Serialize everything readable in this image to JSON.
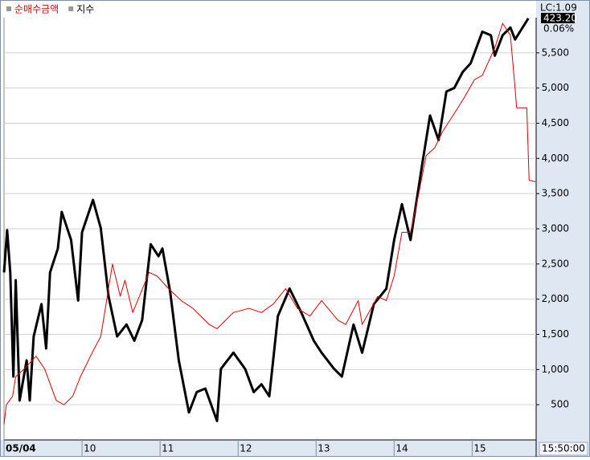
{
  "chart_data": {
    "type": "line",
    "legend": "top-left",
    "grid": true,
    "annotations": [
      "LC:1.09",
      "423.20",
      "0.06%"
    ],
    "time_label": "15:50:00",
    "xlim": [
      0,
      6.82
    ],
    "xticks": [
      {
        "value": 0,
        "label": "05/04"
      },
      {
        "value": 1,
        "label": "10"
      },
      {
        "value": 2,
        "label": "11"
      },
      {
        "value": 3,
        "label": "12"
      },
      {
        "value": 4,
        "label": "13"
      },
      {
        "value": 5,
        "label": "14"
      },
      {
        "value": 6,
        "label": "15"
      }
    ],
    "ylim": [
      0,
      6000
    ],
    "yticks": [
      500,
      {
        "value": 1000,
        "label": "1,000"
      },
      {
        "value": 1500,
        "label": "1,500"
      },
      {
        "value": 2000,
        "label": "2,000"
      },
      {
        "value": 2500,
        "label": "2,500"
      },
      {
        "value": 3000,
        "label": "3,000"
      },
      {
        "value": 3500,
        "label": "3,500"
      },
      {
        "value": 4000,
        "label": "4,000"
      },
      {
        "value": 4500,
        "label": "4,500"
      },
      {
        "value": 5000,
        "label": "5,000"
      },
      {
        "value": 5500,
        "label": "5,500"
      }
    ],
    "series": [
      {
        "name": "순매수금액",
        "color": "#e00000",
        "width": 1,
        "x": [
          0.0,
          0.03,
          0.11,
          0.15,
          0.26,
          0.41,
          0.52,
          0.67,
          0.77,
          0.88,
          0.98,
          1.13,
          1.24,
          1.29,
          1.39,
          1.49,
          1.55,
          1.65,
          1.86,
          1.96,
          2.11,
          2.27,
          2.42,
          2.63,
          2.73,
          2.94,
          3.14,
          3.3,
          3.45,
          3.61,
          3.76,
          3.92,
          4.07,
          4.28,
          4.38,
          4.54,
          4.59,
          4.79,
          4.9,
          5.0,
          5.1,
          5.21,
          5.31,
          5.41,
          5.52,
          5.62,
          5.72,
          5.88,
          6.03,
          6.13,
          6.29,
          6.39,
          6.49,
          6.55,
          6.57,
          6.7,
          6.73,
          6.81
        ],
        "values": [
          220,
          500,
          620,
          900,
          1010,
          1190,
          1010,
          560,
          500,
          620,
          900,
          1240,
          1470,
          1810,
          2500,
          2040,
          2270,
          1810,
          2380,
          2330,
          2150,
          1980,
          1870,
          1640,
          1580,
          1810,
          1870,
          1810,
          1930,
          2150,
          1870,
          1760,
          1980,
          1700,
          1640,
          1980,
          1640,
          2040,
          1980,
          2330,
          2950,
          2950,
          3470,
          4040,
          4150,
          4380,
          4550,
          4830,
          5120,
          5180,
          5570,
          5920,
          5750,
          5000,
          4720,
          4720,
          3690,
          3670
        ]
      },
      {
        "name": "지수",
        "color": "#000000",
        "width": 3,
        "x": [
          0.0,
          0.04,
          0.08,
          0.12,
          0.15,
          0.2,
          0.29,
          0.33,
          0.38,
          0.48,
          0.54,
          0.59,
          0.69,
          0.74,
          0.86,
          0.95,
          1.0,
          1.14,
          1.24,
          1.34,
          1.45,
          1.57,
          1.67,
          1.77,
          1.88,
          1.98,
          2.03,
          2.13,
          2.24,
          2.37,
          2.47,
          2.58,
          2.73,
          2.78,
          2.94,
          3.09,
          3.2,
          3.3,
          3.4,
          3.51,
          3.66,
          3.81,
          3.97,
          4.07,
          4.23,
          4.33,
          4.48,
          4.59,
          4.74,
          4.9,
          5.0,
          5.1,
          5.21,
          5.36,
          5.46,
          5.57,
          5.67,
          5.77,
          5.88,
          5.98,
          6.13,
          6.24,
          6.29,
          6.39,
          6.49,
          6.55,
          6.72
        ],
        "values": [
          2380,
          2980,
          2380,
          900,
          2270,
          560,
          1130,
          560,
          1470,
          1930,
          1300,
          2380,
          2720,
          3240,
          2840,
          1980,
          2950,
          3410,
          3010,
          2040,
          1470,
          1640,
          1410,
          1700,
          2780,
          2610,
          2720,
          2100,
          1130,
          390,
          680,
          730,
          270,
          1010,
          1240,
          1010,
          680,
          790,
          620,
          1760,
          2150,
          1810,
          1410,
          1240,
          1010,
          900,
          1640,
          1240,
          1930,
          2150,
          2840,
          3350,
          2840,
          3920,
          4610,
          4260,
          4950,
          5000,
          5230,
          5350,
          5800,
          5750,
          5460,
          5750,
          5860,
          5690,
          5990
        ]
      }
    ]
  }
}
